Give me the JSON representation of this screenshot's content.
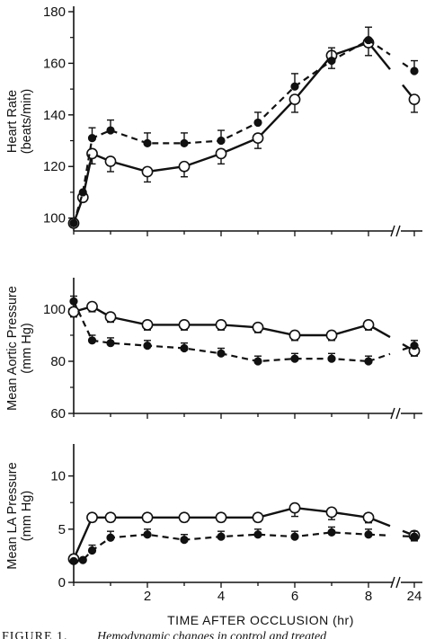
{
  "chart_data": [
    {
      "type": "line",
      "ylabel_line1": "Heart Rate",
      "ylabel_line2": "(beats/min)",
      "ylim": [
        95,
        180
      ],
      "yticks": [
        100,
        120,
        140,
        160,
        180
      ],
      "series": [
        {
          "style": "solid-open-circle",
          "x": [
            0,
            0.25,
            0.5,
            1,
            2,
            3,
            4,
            5,
            6,
            7,
            8,
            24
          ],
          "y": [
            98,
            108,
            125,
            122,
            118,
            120,
            125,
            131,
            146,
            163,
            168,
            146
          ],
          "err": [
            0,
            0,
            4,
            4,
            4,
            4,
            4,
            4,
            5,
            5,
            5,
            5
          ]
        },
        {
          "style": "dashed-filled-circle",
          "x": [
            0,
            0.25,
            0.5,
            1,
            2,
            3,
            4,
            5,
            6,
            7,
            8,
            24
          ],
          "y": [
            98,
            110,
            131,
            134,
            129,
            129,
            130,
            137,
            151,
            161,
            169,
            157
          ],
          "err": [
            0,
            0,
            4,
            4,
            4,
            4,
            4,
            4,
            5,
            5,
            5,
            4
          ]
        }
      ]
    },
    {
      "type": "line",
      "ylabel_line1": "Mean Aortic Pressure",
      "ylabel_line2": "(mm Hg)",
      "ylim": [
        60,
        110
      ],
      "yticks": [
        60,
        80,
        100
      ],
      "series": [
        {
          "style": "solid-open-circle",
          "x": [
            0,
            0.5,
            1,
            2,
            3,
            4,
            5,
            6,
            7,
            8,
            24
          ],
          "y": [
            99,
            101,
            97,
            94,
            94,
            94,
            93,
            90,
            90,
            94,
            84
          ],
          "err": [
            2,
            2,
            2,
            2,
            2,
            2,
            2,
            2,
            2,
            2,
            2
          ]
        },
        {
          "style": "dashed-filled-circle",
          "x": [
            0,
            0.5,
            1,
            2,
            3,
            4,
            5,
            6,
            7,
            8,
            24
          ],
          "y": [
            103,
            88,
            87,
            86,
            85,
            83,
            80,
            81,
            81,
            80,
            86
          ],
          "err": [
            2,
            2,
            2,
            2,
            2,
            2,
            2,
            2,
            2,
            2,
            2
          ]
        }
      ]
    },
    {
      "type": "line",
      "ylabel_line1": "Mean LA Pressure",
      "ylabel_line2": "(mm Hg)",
      "ylim": [
        0,
        12.5
      ],
      "yticks": [
        0,
        5,
        10
      ],
      "series": [
        {
          "style": "solid-open-circle",
          "x": [
            0,
            0.5,
            1,
            2,
            3,
            4,
            5,
            6,
            7,
            8,
            24
          ],
          "y": [
            2.2,
            6.1,
            6.1,
            6.1,
            6.1,
            6.1,
            6.1,
            7,
            6.6,
            6.1,
            4.4
          ],
          "err": [
            0,
            0.4,
            0.4,
            0.4,
            0.4,
            0.4,
            0.4,
            0.8,
            0.7,
            0.5,
            0.5
          ]
        },
        {
          "style": "dashed-filled-circle",
          "x": [
            0,
            0.25,
            0.5,
            1,
            2,
            3,
            4,
            5,
            6,
            7,
            8,
            24
          ],
          "y": [
            2,
            2.1,
            3,
            4.2,
            4.5,
            4,
            4.3,
            4.5,
            4.3,
            4.7,
            4.5,
            4.3
          ],
          "err": [
            0,
            0,
            0.5,
            0.6,
            0.5,
            0.5,
            0.5,
            0.5,
            0.5,
            0.5,
            0.5,
            0.5
          ]
        }
      ]
    }
  ],
  "x_axis": {
    "label": "TIME AFTER OCCLUSION (hr)",
    "ticks": [
      2,
      4,
      6,
      8,
      24
    ],
    "tick_labels": [
      "2",
      "4",
      "6",
      "8",
      "24"
    ]
  },
  "caption": {
    "label": "FIGURE 1.",
    "text": "Hemodynamic changes in control and treated"
  }
}
